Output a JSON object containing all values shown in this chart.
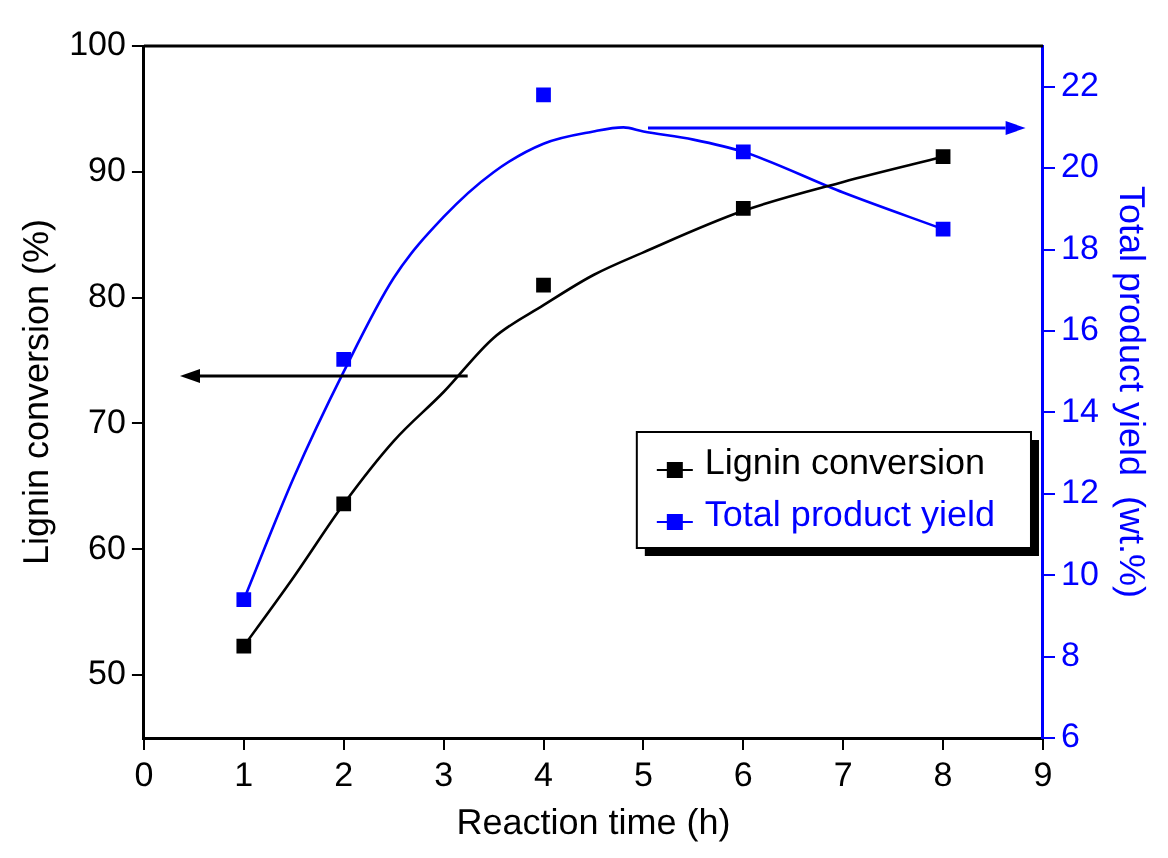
{
  "chart_data": {
    "type": "scatter",
    "xlabel": "Reaction time (h)",
    "ylabel": "Lignin conversion (%)",
    "y2label": "Total product yield  (wt.%)",
    "xlim": [
      0,
      9
    ],
    "xticks": [
      0,
      1,
      2,
      3,
      4,
      5,
      6,
      7,
      8,
      9
    ],
    "ylim": [
      45,
      100
    ],
    "yticks": [
      50,
      60,
      70,
      80,
      90,
      100
    ],
    "y2lim": [
      6,
      23
    ],
    "y2ticks": [
      6,
      8,
      10,
      12,
      14,
      16,
      18,
      20,
      22
    ],
    "grid": false,
    "legend": "right",
    "marker": "square",
    "series": [
      {
        "name": "Lignin conversion",
        "color": "#000000",
        "x": [
          1,
          2,
          4,
          6,
          8
        ],
        "values": [
          52.3,
          63.6,
          81.0,
          87.1,
          91.2
        ]
      },
      {
        "name": "Total product yield",
        "color": "#0000ff",
        "axis": "y2",
        "x": [
          1,
          2,
          4,
          6,
          8
        ],
        "values": [
          9.4,
          15.3,
          21.8,
          20.4,
          18.5
        ]
      },
      {
        "type": "line",
        "marker": "none",
        "color": "#000000",
        "x": [
          1,
          1.5,
          2,
          2.5,
          3,
          3.5,
          4,
          4.5,
          5,
          6,
          7,
          8
        ],
        "values": [
          52.3,
          57.8,
          63.6,
          68.6,
          72.5,
          76.8,
          79.4,
          81.8,
          83.6,
          86.9,
          89.2,
          91.2
        ]
      },
      {
        "type": "line",
        "marker": "none",
        "color": "#0000ff",
        "axis": "y2",
        "x": [
          1,
          1.5,
          2,
          2.5,
          3,
          3.5,
          4,
          4.5,
          4.8,
          5,
          5.5,
          6,
          7,
          8
        ],
        "values": [
          9.4,
          12.4,
          15.0,
          17.3,
          18.8,
          19.9,
          20.6,
          20.9,
          21.0,
          20.9,
          20.7,
          20.4,
          19.4,
          18.5
        ]
      }
    ]
  }
}
